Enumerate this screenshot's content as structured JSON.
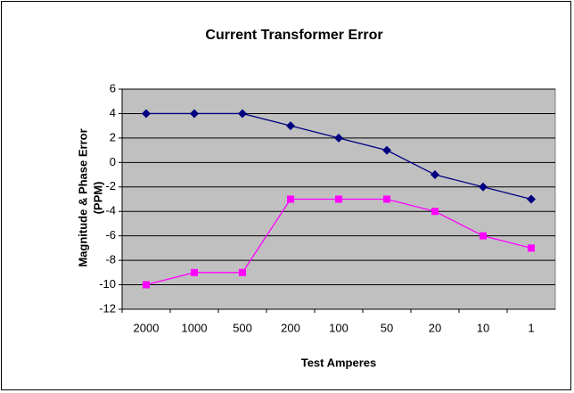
{
  "chart_data": {
    "type": "line",
    "title": "Current Transformer Error",
    "x_label": "Test Amperes",
    "y_label": [
      "Magnitude & Phase Error",
      "(PPM)"
    ],
    "categories": [
      "2000",
      "1000",
      "500",
      "200",
      "100",
      "50",
      "20",
      "10",
      "1"
    ],
    "series": [
      {
        "color": "#000080",
        "marker": "diamond",
        "values": [
          4,
          4,
          4,
          3,
          2,
          1,
          -1,
          -2,
          -3
        ]
      },
      {
        "color": "#ff00ff",
        "marker": "square",
        "values": [
          -10,
          -9,
          -9,
          -3,
          -3,
          -3,
          -4,
          -6,
          -7
        ]
      }
    ],
    "ylim": [
      -12,
      6
    ],
    "yticks": [
      -12,
      -10,
      -8,
      -6,
      -4,
      -2,
      0,
      2,
      4,
      6
    ],
    "grid": true,
    "plot_background": "#c0c0c0"
  }
}
